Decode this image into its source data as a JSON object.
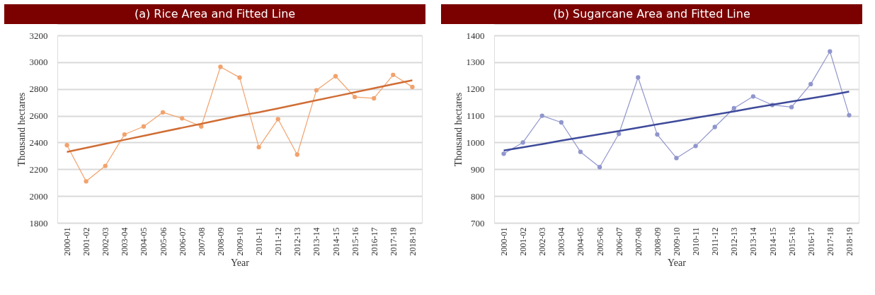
{
  "chart_data": [
    {
      "type": "line",
      "title": "(a) Rice Area and Fitted Line",
      "xlabel": "Year",
      "ylabel": "Thousand hectares",
      "categories": [
        "2000-01",
        "2001-02",
        "2002-03",
        "2003-04",
        "2004-05",
        "2005-06",
        "2006-07",
        "2007-08",
        "2008-09",
        "2009-10",
        "2010-11",
        "2011-12",
        "2012-13",
        "2013-14",
        "2014-15",
        "2015-16",
        "2016-17",
        "2017-18",
        "2018-19"
      ],
      "series": [
        {
          "color": "#f2a26c",
          "marker": "circle",
          "values": [
            2380,
            2110,
            2225,
            2460,
            2520,
            2625,
            2580,
            2520,
            2965,
            2885,
            2365,
            2575,
            2310,
            2790,
            2895,
            2740,
            2730,
            2905,
            2815
          ]
        },
        {
          "color": "#d06d35",
          "marker": "none",
          "values": [
            2330,
            2360,
            2390,
            2420,
            2450,
            2480,
            2510,
            2540,
            2570,
            2600,
            2625,
            2655,
            2685,
            2715,
            2745,
            2775,
            2805,
            2835,
            2865
          ]
        }
      ],
      "ylim": [
        1800,
        3200
      ],
      "yticks": [
        1800,
        2000,
        2200,
        2400,
        2600,
        2800,
        3000,
        3200
      ],
      "grid": "y"
    },
    {
      "type": "line",
      "title": "(b) Sugarcane Area and Fitted Line",
      "xlabel": "Year",
      "ylabel": "Thousand hectares",
      "categories": [
        "2000-01",
        "2001-02",
        "2002-03",
        "2003-04",
        "2004-05",
        "2005-06",
        "2006-07",
        "2007-08",
        "2008-09",
        "2009-10",
        "2010-11",
        "2011-12",
        "2012-13",
        "2013-14",
        "2014-15",
        "2015-16",
        "2016-17",
        "2017-18",
        "2018-19"
      ],
      "series": [
        {
          "color": "#9096cc",
          "marker": "circle",
          "values": [
            958,
            1000,
            1100,
            1075,
            965,
            908,
            1032,
            1243,
            1030,
            942,
            987,
            1058,
            1128,
            1172,
            1140,
            1132,
            1218,
            1340,
            1102
          ]
        },
        {
          "color": "#3e4a9a",
          "marker": "none",
          "values": [
            970,
            982,
            994,
            1007,
            1019,
            1031,
            1043,
            1055,
            1068,
            1080,
            1092,
            1104,
            1116,
            1129,
            1141,
            1153,
            1165,
            1177,
            1190
          ]
        }
      ],
      "ylim": [
        700,
        1400
      ],
      "yticks": [
        700,
        800,
        900,
        1000,
        1100,
        1200,
        1300,
        1400
      ],
      "grid": "y"
    }
  ]
}
